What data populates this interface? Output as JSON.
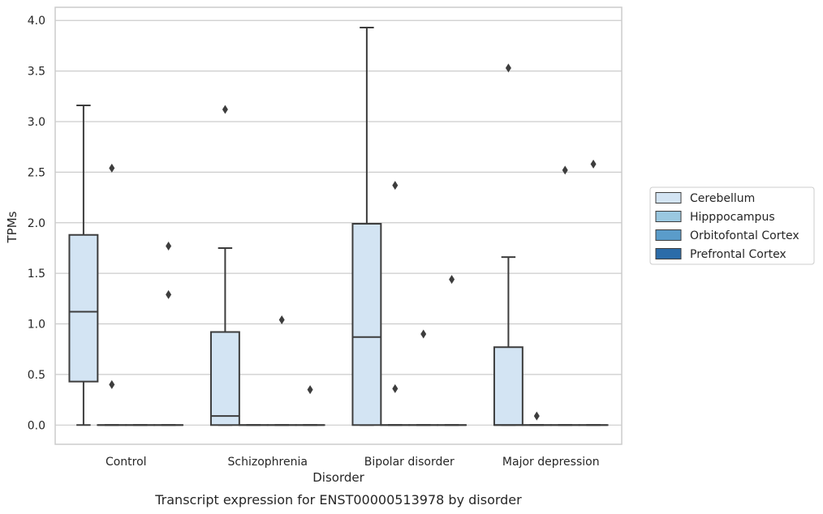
{
  "chart_data": {
    "type": "box",
    "categories": [
      "Control",
      "Schizophrenia",
      "Bipolar disorder",
      "Major depression"
    ],
    "xlabel": "Disorder",
    "ylabel": "TPMs",
    "caption": "Transcript expression for ENST00000513978 by disorder",
    "ylim": [
      -0.19,
      4.13
    ],
    "yticks": [
      0.0,
      0.5,
      1.0,
      1.5,
      2.0,
      2.5,
      3.0,
      3.5,
      4.0
    ],
    "ytick_labels": [
      "0.0",
      "0.5",
      "1.0",
      "1.5",
      "2.0",
      "2.5",
      "3.0",
      "3.5",
      "4.0"
    ],
    "grid": true,
    "legend_position": "right",
    "series": [
      {
        "name": "Cerebellum",
        "color": "#d3e4f3",
        "boxes": [
          {
            "q1": 0.43,
            "median": 1.12,
            "q3": 1.88,
            "whisker_low": 0.0,
            "whisker_high": 3.16,
            "outliers": []
          },
          {
            "q1": 0.0,
            "median": 0.09,
            "q3": 0.92,
            "whisker_low": 0.0,
            "whisker_high": 1.75,
            "outliers": [
              3.12
            ]
          },
          {
            "q1": 0.0,
            "median": 0.87,
            "q3": 1.99,
            "whisker_low": 0.0,
            "whisker_high": 3.93,
            "outliers": []
          },
          {
            "q1": 0.0,
            "median": 0.0,
            "q3": 0.77,
            "whisker_low": 0.0,
            "whisker_high": 1.66,
            "outliers": [
              3.53
            ]
          }
        ]
      },
      {
        "name": "Hipppocampus",
        "color": "#9ac8e0",
        "boxes": [
          {
            "q1": 0.0,
            "median": 0.0,
            "q3": 0.0,
            "whisker_low": 0.0,
            "whisker_high": 0.0,
            "outliers": [
              2.54,
              0.4
            ]
          },
          {
            "q1": 0.0,
            "median": 0.0,
            "q3": 0.0,
            "whisker_low": 0.0,
            "whisker_high": 0.0,
            "outliers": []
          },
          {
            "q1": 0.0,
            "median": 0.0,
            "q3": 0.0,
            "whisker_low": 0.0,
            "whisker_high": 0.0,
            "outliers": [
              2.37,
              0.36
            ]
          },
          {
            "q1": 0.0,
            "median": 0.0,
            "q3": 0.0,
            "whisker_low": 0.0,
            "whisker_high": 0.0,
            "outliers": [
              0.09
            ]
          }
        ]
      },
      {
        "name": "Orbitofontal Cortex",
        "color": "#5a9cca",
        "boxes": [
          {
            "q1": 0.0,
            "median": 0.0,
            "q3": 0.0,
            "whisker_low": 0.0,
            "whisker_high": 0.0,
            "outliers": []
          },
          {
            "q1": 0.0,
            "median": 0.0,
            "q3": 0.0,
            "whisker_low": 0.0,
            "whisker_high": 0.0,
            "outliers": [
              1.04
            ]
          },
          {
            "q1": 0.0,
            "median": 0.0,
            "q3": 0.0,
            "whisker_low": 0.0,
            "whisker_high": 0.0,
            "outliers": [
              0.9
            ]
          },
          {
            "q1": 0.0,
            "median": 0.0,
            "q3": 0.0,
            "whisker_low": 0.0,
            "whisker_high": 0.0,
            "outliers": [
              2.52
            ]
          }
        ]
      },
      {
        "name": "Prefrontal Cortex",
        "color": "#2b6ca9",
        "boxes": [
          {
            "q1": 0.0,
            "median": 0.0,
            "q3": 0.0,
            "whisker_low": 0.0,
            "whisker_high": 0.0,
            "outliers": [
              1.77,
              1.29
            ]
          },
          {
            "q1": 0.0,
            "median": 0.0,
            "q3": 0.0,
            "whisker_low": 0.0,
            "whisker_high": 0.0,
            "outliers": [
              0.35
            ]
          },
          {
            "q1": 0.0,
            "median": 0.0,
            "q3": 0.0,
            "whisker_low": 0.0,
            "whisker_high": 0.0,
            "outliers": [
              1.44
            ]
          },
          {
            "q1": 0.0,
            "median": 0.0,
            "q3": 0.0,
            "whisker_low": 0.0,
            "whisker_high": 0.0,
            "outliers": [
              2.58
            ]
          }
        ]
      }
    ],
    "colors": {
      "grid": "#cccccc",
      "frame": "#cccccc",
      "box_edge": "#3d3d3d",
      "outlier": "#3d3d3d",
      "text": "#262626"
    }
  }
}
